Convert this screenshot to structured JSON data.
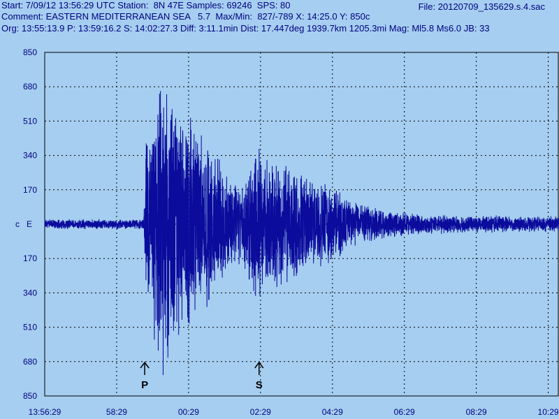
{
  "header": {
    "start_label": "Start:",
    "start_value": "7/09/12 13:56:29 UTC",
    "station_label": "Station:",
    "station_value": "8N 47E",
    "samples_label": "Samples:",
    "samples_value": "69246",
    "sps_label": "SPS:",
    "sps_value": "80",
    "file_label": "File:",
    "file_value": "20120709_135629.s.4.sac",
    "comment_label": "Comment:",
    "comment_value": "EASTERN MEDITERRANEAN SEA",
    "comment_mag": "5.7",
    "maxmin_label": "Max/Min:",
    "maxmin_value": "827/-789",
    "x_label": "X:",
    "x_value": "14:25.0",
    "y_label": "Y:",
    "y_value": "850c",
    "org_label": "Org:",
    "org_value": "13:55:13.9",
    "p_label": "P:",
    "p_value": "13:59:16.2",
    "s_label": "S:",
    "s_value": "14:02:27.3",
    "diff_label": "Diff:",
    "diff_value": "3:11.1min",
    "dist_label": "Dist:",
    "dist_value": "17.447deg 1939.7km 1205.3mi",
    "mag_label": "Mag:",
    "mag_value": "Ml5.8 Ms6.0",
    "jb_label": "JB:",
    "jb_value": "33"
  },
  "chart_data": {
    "type": "line",
    "channel_label": "c   E",
    "y_tick_labels": [
      "850",
      "680",
      "510",
      "340",
      "170",
      "c   E",
      "170",
      "340",
      "510",
      "680",
      "850"
    ],
    "ylim": [
      -850,
      850
    ],
    "x_tick_labels": [
      "13:56:29",
      "58:29",
      "00:29",
      "02:29",
      "04:29",
      "06:29",
      "08:29",
      "10:29"
    ],
    "x_range_minutes": [
      0,
      14.3
    ],
    "grid": true,
    "series": [
      {
        "envelope": [
          {
            "t": 0.0,
            "amp": 25
          },
          {
            "t": 2.75,
            "amp": 25
          },
          {
            "t": 2.82,
            "amp": 420
          },
          {
            "t": 3.3,
            "amp": 780
          },
          {
            "t": 3.6,
            "amp": 700
          },
          {
            "t": 4.0,
            "amp": 560
          },
          {
            "t": 4.5,
            "amp": 420
          },
          {
            "t": 5.0,
            "amp": 280
          },
          {
            "t": 5.5,
            "amp": 180
          },
          {
            "t": 5.9,
            "amp": 420
          },
          {
            "t": 6.3,
            "amp": 300
          },
          {
            "t": 6.6,
            "amp": 330
          },
          {
            "t": 7.0,
            "amp": 260
          },
          {
            "t": 7.5,
            "amp": 240
          },
          {
            "t": 8.0,
            "amp": 200
          },
          {
            "t": 8.6,
            "amp": 110
          },
          {
            "t": 9.5,
            "amp": 70
          },
          {
            "t": 10.5,
            "amp": 50
          },
          {
            "t": 12.0,
            "amp": 45
          },
          {
            "t": 14.3,
            "amp": 40
          }
        ],
        "max": 827,
        "min": -789
      }
    ],
    "phase_markers": [
      {
        "label": "P",
        "t": 2.78
      },
      {
        "label": "S",
        "t": 5.96
      }
    ],
    "colors": {
      "background": "#a6cef0",
      "trace": "#0b0b9c",
      "text": "#000080",
      "grid": "#000000"
    }
  }
}
